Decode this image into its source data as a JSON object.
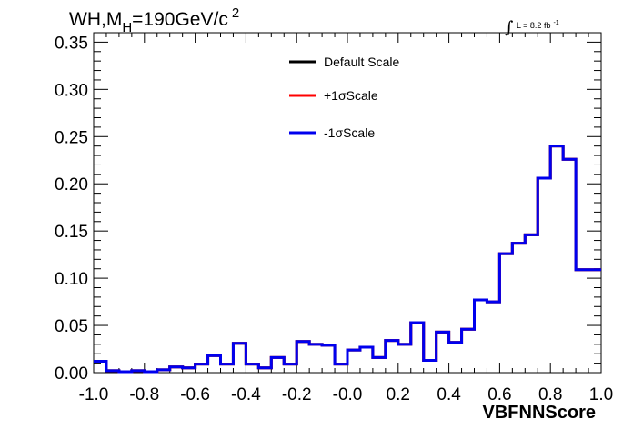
{
  "chart_data": {
    "type": "line",
    "title": {
      "main": "WH,M",
      "subscript": "H",
      "rest": "=190GeV/c",
      "superscript": "2"
    },
    "lumi": {
      "integral": "∫",
      "text": "L = 8.2 fb",
      "superscript": "-1"
    },
    "xlabel": "VBFNNScore",
    "ylabel": "",
    "xlim": [
      -1.0,
      1.0
    ],
    "ylim": [
      0.0,
      0.36
    ],
    "x_ticks": [
      "-1.0",
      "-0.8",
      "-0.6",
      "-0.4",
      "-0.2",
      "-0.0",
      "0.2",
      "0.4",
      "0.6",
      "0.8",
      "1.0"
    ],
    "y_ticks": [
      "0.00",
      "0.05",
      "0.10",
      "0.15",
      "0.20",
      "0.25",
      "0.30",
      "0.35"
    ],
    "bin_edges": [
      -1.0,
      -0.95,
      -0.9,
      -0.85,
      -0.8,
      -0.75,
      -0.7,
      -0.65,
      -0.6,
      -0.55,
      -0.5,
      -0.45,
      -0.4,
      -0.35,
      -0.3,
      -0.25,
      -0.2,
      -0.15,
      -0.1,
      -0.05,
      0.0,
      0.05,
      0.1,
      0.15,
      0.2,
      0.25,
      0.3,
      0.35,
      0.4,
      0.45,
      0.5,
      0.55,
      0.6,
      0.65,
      0.7,
      0.75,
      0.8,
      0.85,
      0.9,
      0.95,
      1.0
    ],
    "legend": {
      "placement": "top-center"
    },
    "series": [
      {
        "name": "Default Scale",
        "color": "#000000",
        "values": [
          0.012,
          0.002,
          0.001,
          0.002,
          0.001,
          0.003,
          0.006,
          0.005,
          0.009,
          0.018,
          0.009,
          0.031,
          0.009,
          0.005,
          0.016,
          0.009,
          0.033,
          0.03,
          0.029,
          0.009,
          0.024,
          0.027,
          0.016,
          0.034,
          0.03,
          0.053,
          0.013,
          0.043,
          0.032,
          0.046,
          0.077,
          0.075,
          0.126,
          0.137,
          0.146,
          0.206,
          0.24,
          0.226,
          0.109,
          0.109
        ]
      },
      {
        "name": "+1σScale",
        "color": "#ff0000",
        "values": [
          0.012,
          0.002,
          0.001,
          0.002,
          0.001,
          0.003,
          0.006,
          0.005,
          0.009,
          0.018,
          0.009,
          0.031,
          0.009,
          0.005,
          0.016,
          0.009,
          0.033,
          0.03,
          0.029,
          0.009,
          0.024,
          0.027,
          0.016,
          0.034,
          0.03,
          0.053,
          0.013,
          0.043,
          0.032,
          0.046,
          0.077,
          0.075,
          0.126,
          0.137,
          0.146,
          0.206,
          0.24,
          0.226,
          0.109,
          0.109
        ]
      },
      {
        "name": "-1σScale",
        "color": "#0000ee",
        "values": [
          0.012,
          0.002,
          0.001,
          0.002,
          0.001,
          0.003,
          0.006,
          0.005,
          0.009,
          0.018,
          0.009,
          0.031,
          0.009,
          0.005,
          0.016,
          0.009,
          0.033,
          0.03,
          0.029,
          0.009,
          0.024,
          0.027,
          0.016,
          0.034,
          0.03,
          0.053,
          0.013,
          0.043,
          0.032,
          0.046,
          0.077,
          0.075,
          0.126,
          0.137,
          0.146,
          0.206,
          0.24,
          0.226,
          0.109,
          0.109
        ]
      }
    ]
  }
}
